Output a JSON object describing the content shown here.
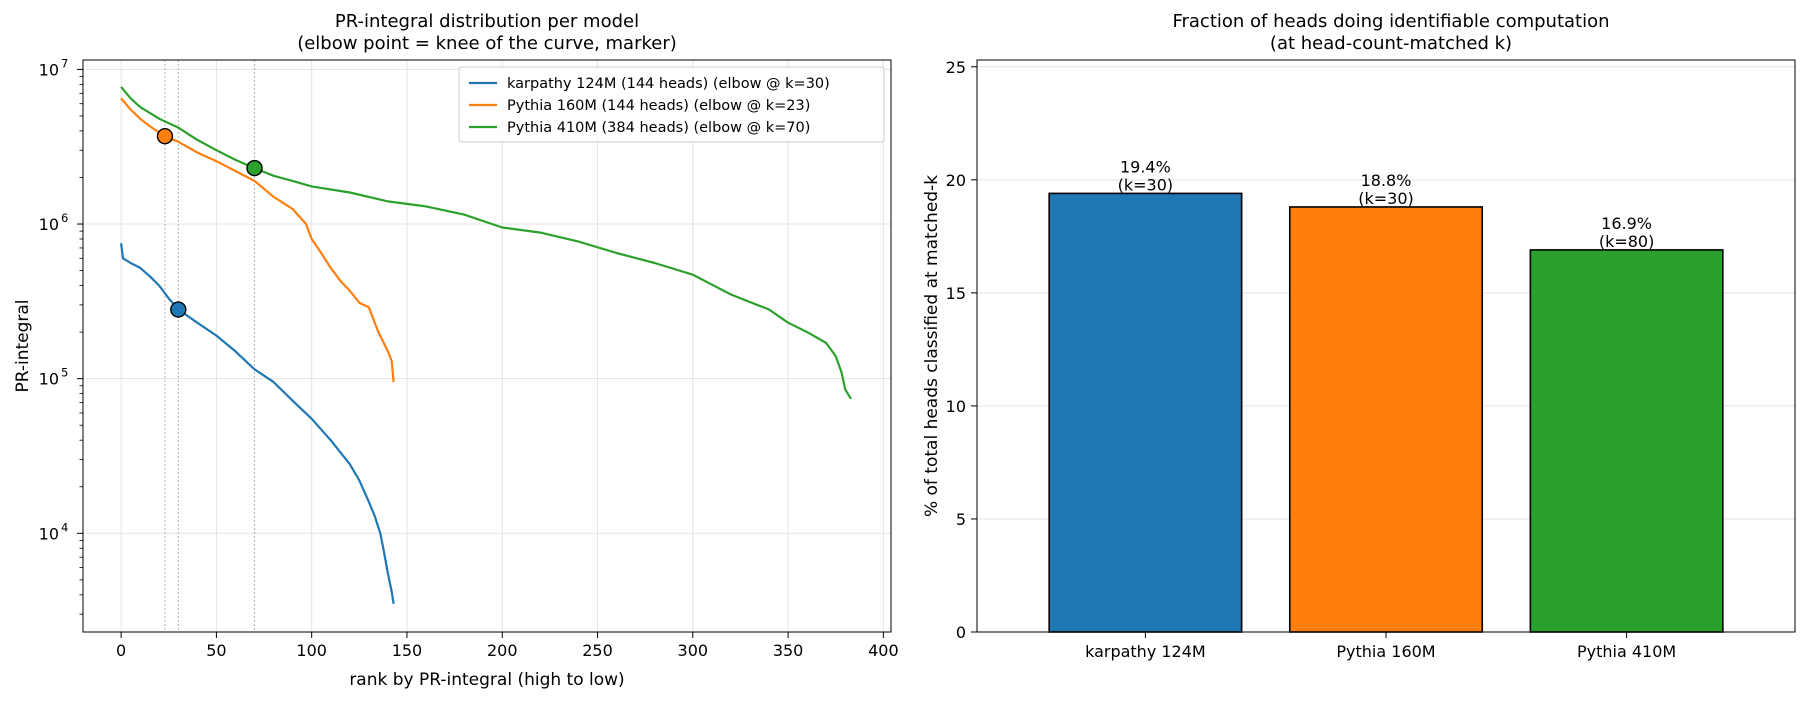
{
  "chart_data": [
    {
      "type": "line",
      "title": "PR-integral distribution per model",
      "subtitle": "(elbow point = knee of the curve, marker)",
      "xlabel": "rank by PR-integral (high to low)",
      "ylabel": "PR-integral",
      "xlim": [
        -20,
        404
      ],
      "ylim": [
        2300,
        11500000
      ],
      "yscale": "log",
      "x_ticks": [
        0,
        50,
        100,
        150,
        200,
        250,
        300,
        350,
        400
      ],
      "y_ticks": [
        {
          "value": 10000,
          "base": "10",
          "exp": "4"
        },
        {
          "value": 100000,
          "base": "10",
          "exp": "5"
        },
        {
          "value": 1000000,
          "base": "10",
          "exp": "6"
        },
        {
          "value": 10000000,
          "base": "10",
          "exp": "7"
        }
      ],
      "grid": true,
      "legend_position": "top-right",
      "elbow_guides": [
        23,
        30,
        70
      ],
      "series": [
        {
          "name": "karpathy 124M (144 heads) (elbow @ k=30)",
          "color": "#1f77b4",
          "elbow": {
            "x": 30,
            "y": 280000
          },
          "points": [
            [
              0,
              750000
            ],
            [
              1,
              600000
            ],
            [
              5,
              560000
            ],
            [
              10,
              520000
            ],
            [
              15,
              460000
            ],
            [
              20,
              400000
            ],
            [
              25,
              330000
            ],
            [
              30,
              280000
            ],
            [
              40,
              230000
            ],
            [
              50,
              190000
            ],
            [
              60,
              150000
            ],
            [
              70,
              115000
            ],
            [
              80,
              95000
            ],
            [
              90,
              72000
            ],
            [
              100,
              55000
            ],
            [
              110,
              40000
            ],
            [
              120,
              28000
            ],
            [
              125,
              22000
            ],
            [
              130,
              16000
            ],
            [
              133,
              13000
            ],
            [
              136,
              10000
            ],
            [
              138,
              7500
            ],
            [
              140,
              5500
            ],
            [
              142,
              4200
            ],
            [
              143,
              3500
            ]
          ]
        },
        {
          "name": "Pythia 160M (144 heads) (elbow @ k=23)",
          "color": "#ff7f0e",
          "elbow": {
            "x": 23,
            "y": 3700000
          },
          "points": [
            [
              0,
              6500000
            ],
            [
              5,
              5500000
            ],
            [
              10,
              4800000
            ],
            [
              15,
              4300000
            ],
            [
              20,
              3900000
            ],
            [
              23,
              3700000
            ],
            [
              30,
              3400000
            ],
            [
              40,
              2900000
            ],
            [
              50,
              2550000
            ],
            [
              60,
              2200000
            ],
            [
              70,
              1900000
            ],
            [
              80,
              1500000
            ],
            [
              90,
              1250000
            ],
            [
              97,
              1000000
            ],
            [
              100,
              800000
            ],
            [
              105,
              650000
            ],
            [
              110,
              520000
            ],
            [
              115,
              430000
            ],
            [
              120,
              370000
            ],
            [
              125,
              310000
            ],
            [
              130,
              290000
            ],
            [
              135,
              200000
            ],
            [
              140,
              150000
            ],
            [
              142,
              130000
            ],
            [
              143,
              95000
            ]
          ]
        },
        {
          "name": "Pythia 410M (384 heads) (elbow @ k=70)",
          "color": "#2ca02c",
          "elbow": {
            "x": 70,
            "y": 2300000
          },
          "points": [
            [
              0,
              7700000
            ],
            [
              5,
              6500000
            ],
            [
              10,
              5700000
            ],
            [
              20,
              4800000
            ],
            [
              30,
              4200000
            ],
            [
              40,
              3500000
            ],
            [
              50,
              3000000
            ],
            [
              60,
              2600000
            ],
            [
              70,
              2300000
            ],
            [
              80,
              2050000
            ],
            [
              90,
              1900000
            ],
            [
              100,
              1750000
            ],
            [
              120,
              1600000
            ],
            [
              140,
              1400000
            ],
            [
              160,
              1300000
            ],
            [
              180,
              1150000
            ],
            [
              200,
              950000
            ],
            [
              220,
              880000
            ],
            [
              240,
              770000
            ],
            [
              260,
              650000
            ],
            [
              280,
              560000
            ],
            [
              300,
              470000
            ],
            [
              320,
              350000
            ],
            [
              340,
              280000
            ],
            [
              350,
              230000
            ],
            [
              360,
              200000
            ],
            [
              370,
              170000
            ],
            [
              375,
              140000
            ],
            [
              378,
              110000
            ],
            [
              380,
              85000
            ],
            [
              383,
              74000
            ]
          ]
        }
      ]
    },
    {
      "type": "bar",
      "title": "Fraction of heads doing identifiable computation",
      "subtitle": "(at head-count-matched k)",
      "xlabel": "",
      "ylabel": "% of total heads classified at matched-k",
      "ylim": [
        0,
        25.3
      ],
      "y_ticks": [
        0,
        5,
        10,
        15,
        20,
        25
      ],
      "grid": true,
      "categories": [
        "karpathy 124M",
        "Pythia 160M",
        "Pythia 410M"
      ],
      "values": [
        19.4,
        18.8,
        16.9
      ],
      "value_labels": [
        "19.4%",
        "18.8%",
        "16.9%"
      ],
      "k_labels": [
        "(k=30)",
        "(k=30)",
        "(k=80)"
      ],
      "colors": [
        "#1f77b4",
        "#ff7f0e",
        "#2ca02c"
      ]
    }
  ]
}
